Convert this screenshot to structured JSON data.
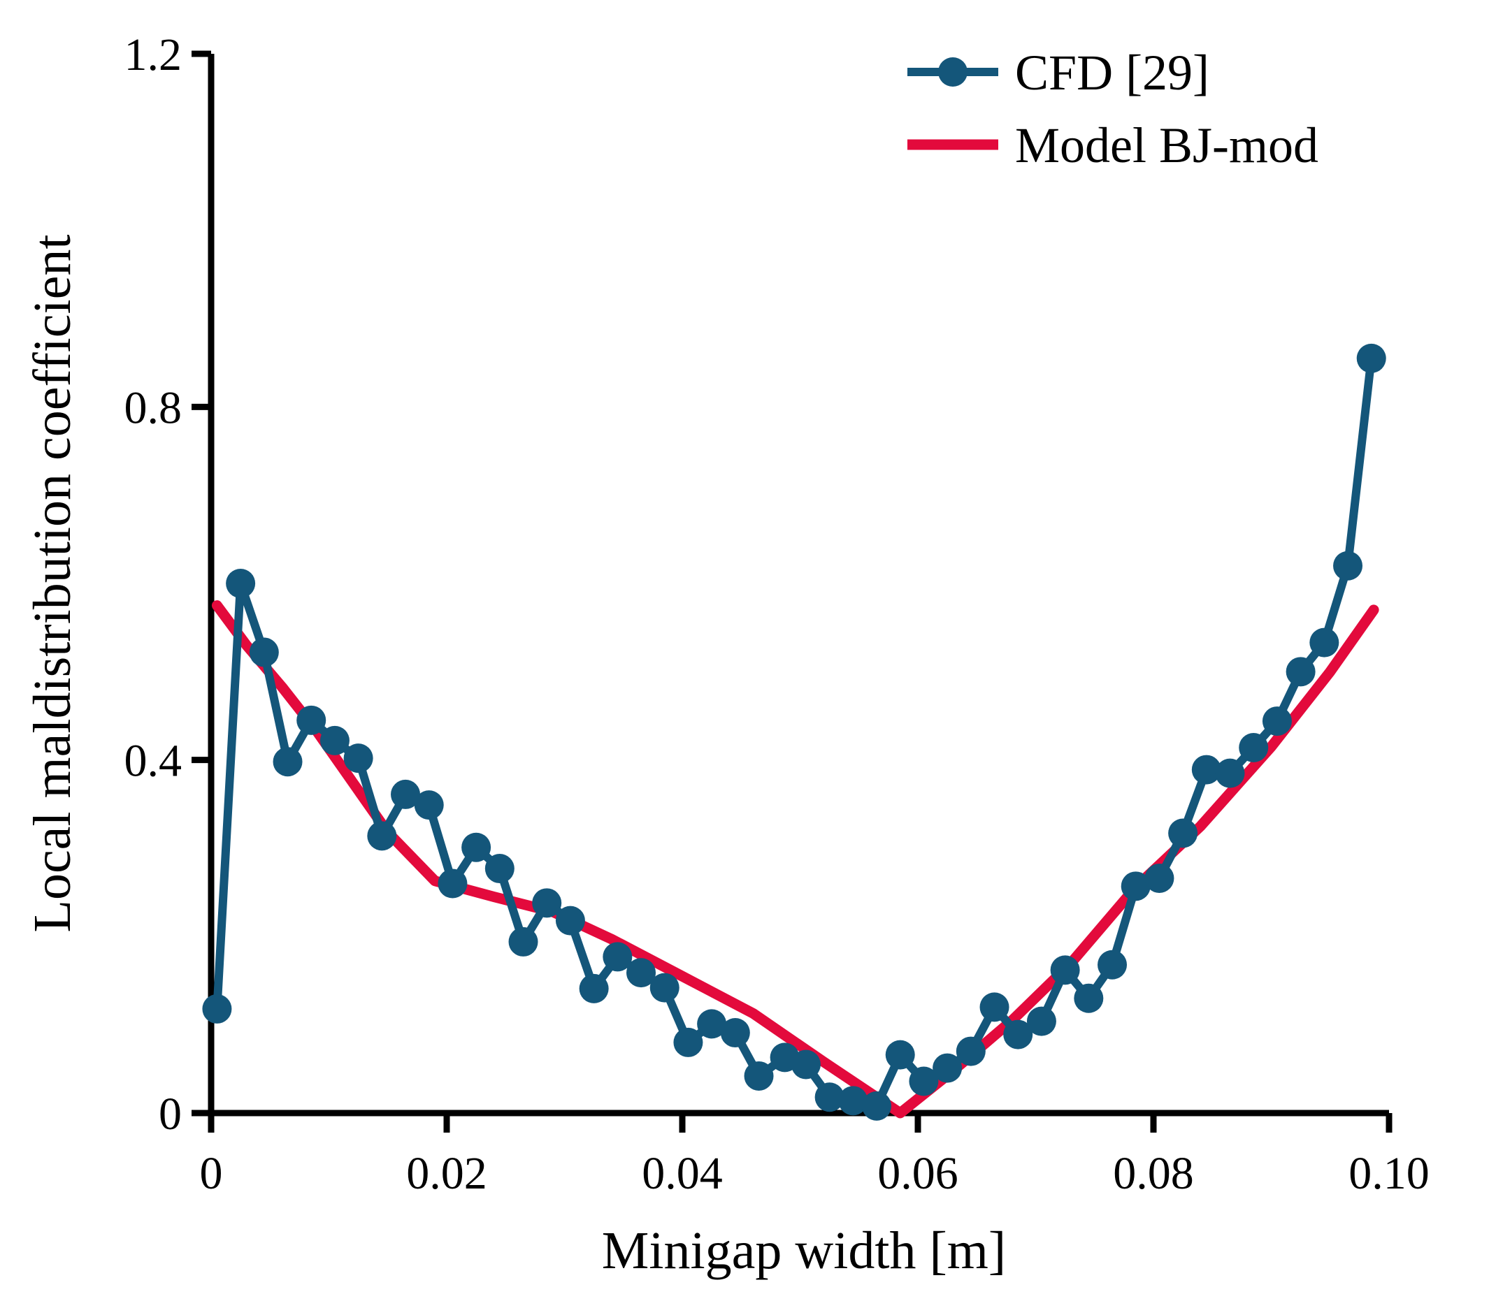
{
  "figure": {
    "background_color": "#ffffff",
    "axis_color": "#000000"
  },
  "chart_data": {
    "type": "line",
    "title": "",
    "xlabel": "Minigap width [m]",
    "ylabel": "Local maldistribution coefficient",
    "xlim": [
      0,
      0.1
    ],
    "ylim": [
      0,
      1.2
    ],
    "grid": false,
    "legend_position": "top-right",
    "x_ticks": [
      {
        "value": 0.0,
        "label": "0"
      },
      {
        "value": 0.02,
        "label": "0.02"
      },
      {
        "value": 0.04,
        "label": "0.04"
      },
      {
        "value": 0.06,
        "label": "0.06"
      },
      {
        "value": 0.08,
        "label": "0.08"
      },
      {
        "value": 0.1,
        "label": "0.10"
      }
    ],
    "y_ticks": [
      {
        "value": 0.0,
        "label": "0"
      },
      {
        "value": 0.4,
        "label": "0.4"
      },
      {
        "value": 0.8,
        "label": "0.8"
      },
      {
        "value": 1.2,
        "label": "1.2"
      }
    ],
    "series": [
      {
        "name": "CFD [29]",
        "color": "#14567a",
        "marker": "circle",
        "line_width": 12,
        "marker_radius": 21,
        "x": [
          0.0005,
          0.0025,
          0.0045,
          0.0065,
          0.0085,
          0.0105,
          0.0125,
          0.0145,
          0.0165,
          0.0185,
          0.0205,
          0.0225,
          0.0245,
          0.0265,
          0.0285,
          0.0305,
          0.0325,
          0.0345,
          0.0365,
          0.0385,
          0.0405,
          0.0425,
          0.0445,
          0.0465,
          0.0487,
          0.0505,
          0.0525,
          0.0545,
          0.0565,
          0.0585,
          0.0605,
          0.0625,
          0.0645,
          0.0665,
          0.0685,
          0.0705,
          0.0725,
          0.0745,
          0.0765,
          0.0785,
          0.0805,
          0.0825,
          0.0845,
          0.0865,
          0.0885,
          0.0905,
          0.0925,
          0.0945,
          0.0965,
          0.0985
        ],
        "y": [
          0.118,
          0.6,
          0.522,
          0.398,
          0.445,
          0.422,
          0.402,
          0.314,
          0.361,
          0.349,
          0.26,
          0.301,
          0.277,
          0.194,
          0.238,
          0.218,
          0.141,
          0.177,
          0.159,
          0.142,
          0.08,
          0.101,
          0.091,
          0.042,
          0.063,
          0.055,
          0.018,
          0.014,
          0.008,
          0.066,
          0.036,
          0.051,
          0.07,
          0.12,
          0.089,
          0.104,
          0.162,
          0.13,
          0.168,
          0.257,
          0.266,
          0.317,
          0.389,
          0.385,
          0.414,
          0.444,
          0.5,
          0.533,
          0.62,
          0.855
        ]
      },
      {
        "name": "Model BJ-mod",
        "color": "#e30a3c",
        "marker": "none",
        "line_width": 15,
        "x": [
          0.0005,
          0.003,
          0.006,
          0.009,
          0.012,
          0.015,
          0.019,
          0.024,
          0.029,
          0.034,
          0.04,
          0.046,
          0.052,
          0.0585,
          0.063,
          0.068,
          0.073,
          0.0785,
          0.084,
          0.09,
          0.095,
          0.0987
        ],
        "y": [
          0.575,
          0.53,
          0.483,
          0.432,
          0.375,
          0.318,
          0.263,
          0.245,
          0.228,
          0.197,
          0.155,
          0.113,
          0.058,
          0.0,
          0.048,
          0.105,
          0.17,
          0.256,
          0.325,
          0.415,
          0.5,
          0.57
        ]
      }
    ]
  }
}
